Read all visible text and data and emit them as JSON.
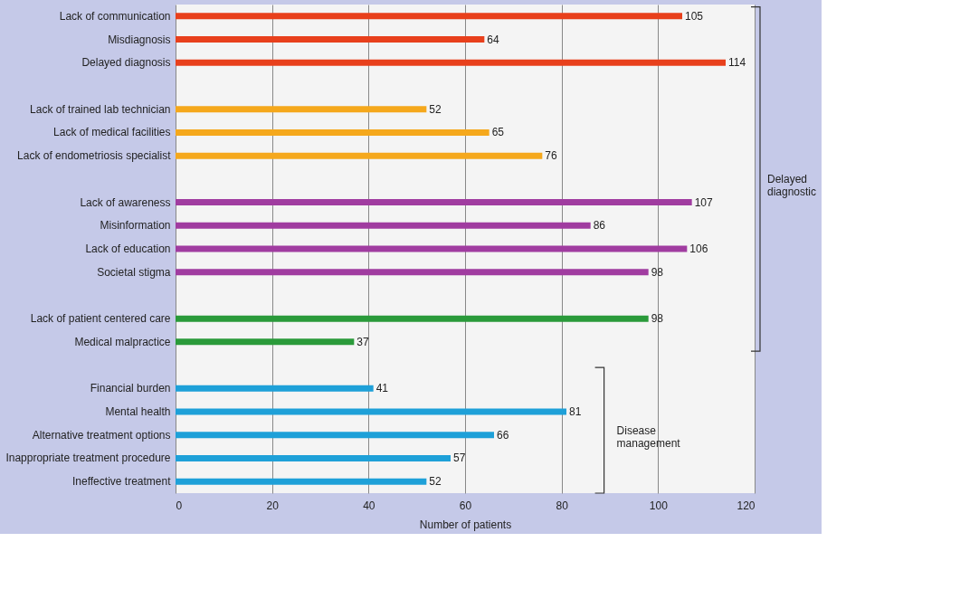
{
  "chart_data": {
    "type": "bar",
    "orientation": "horizontal",
    "xlabel": "Number of patients",
    "categories": [
      "Lack of communication",
      "Misdiagnosis",
      "Delayed diagnosis",
      null,
      "Lack of trained lab technician",
      "Lack of medical facilities",
      "Lack of endometriosis specialist",
      null,
      "Lack of awareness",
      "Misinformation",
      "Lack of education",
      "Societal stigma",
      null,
      "Lack of patient centered care",
      "Medical malpractice",
      null,
      "Financial burden",
      "Mental health",
      "Alternative treatment options",
      "Inappropriate treatment procedure",
      "Ineffective treatment"
    ],
    "values": [
      105,
      64,
      114,
      null,
      52,
      65,
      76,
      null,
      107,
      86,
      106,
      98,
      null,
      98,
      37,
      null,
      41,
      81,
      66,
      57,
      52
    ],
    "colors": [
      "#e8401c",
      "#e8401c",
      "#e8401c",
      null,
      "#f5a81c",
      "#f5a81c",
      "#f5a81c",
      null,
      "#a03ca0",
      "#a03ca0",
      "#a03ca0",
      "#a03ca0",
      null,
      "#2a9a3a",
      "#2a9a3a",
      null,
      "#1ea0d8",
      "#1ea0d8",
      "#1ea0d8",
      "#1ea0d8",
      "#1ea0d8"
    ],
    "xlim": [
      0,
      120
    ],
    "xticks": [
      0,
      20,
      40,
      60,
      80,
      100,
      120
    ],
    "grid": "x",
    "data_labels": true,
    "annotations": [
      "Delayed diagnostic",
      "Disease management"
    ]
  }
}
